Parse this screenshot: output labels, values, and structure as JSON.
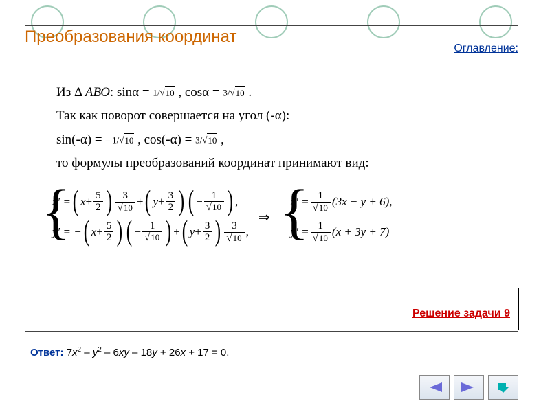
{
  "decor": {
    "dot_count": 5,
    "dot_border": "#a0ccb8"
  },
  "title": "Преобразования координат",
  "title_color": "#cc6600",
  "toc_link": "Оглавление:",
  "lines": {
    "l1_prefix": "Из Δ ",
    "l1_tri": "АВО",
    "l1_mid1": ": sinα = ",
    "l1_frac1_num": "1",
    "l1_frac1_rad": "10",
    "l1_mid2": ",  cosα = ",
    "l1_frac2_num": "3",
    "l1_frac2_rad": "10",
    "l1_end": ".",
    "l2": "Так как поворот совершается на угол (-α):",
    "l3_a": "sin(-α) = ",
    "l3_frac1_num": "– 1",
    "l3_frac1_rad": "10",
    "l3_b": ",  cos(-α) = ",
    "l3_frac2_num": "3",
    "l3_frac2_rad": "10",
    "l3_c": ",",
    "l4": "то формулы преобразований координат  принимают вид:"
  },
  "formula": {
    "left": {
      "row1": {
        "lhs": "x′ =",
        "p1_var": "x",
        "p1_sign": "+",
        "p1_num": "5",
        "p1_den": "2",
        "cf1_num": "3",
        "cf1_rad": "10",
        "plus": "+",
        "p2_var": "y",
        "p2_sign": "+",
        "p2_num": "3",
        "p2_den": "2",
        "cf2_sign": "−",
        "cf2_num": "1",
        "cf2_rad": "10",
        "end": ","
      },
      "row2": {
        "lhs": "y′ = −",
        "p1_var": "x",
        "p1_sign": "+",
        "p1_num": "5",
        "p1_den": "2",
        "cf1_sign": "−",
        "cf1_num": "1",
        "cf1_rad": "10",
        "plus": "+",
        "p2_var": "y",
        "p2_sign": "+",
        "p2_num": "3",
        "p2_den": "2",
        "cf2_num": "3",
        "cf2_rad": "10",
        "end": ","
      }
    },
    "arrow": "⇒",
    "right": {
      "row1": {
        "lhs": "x′ =",
        "cf_num": "1",
        "cf_rad": "10",
        "paren": "(3x − y + 6)",
        "end": ","
      },
      "row2": {
        "lhs": "y′ =",
        "cf_num": "1",
        "cf_rad": "10",
        "paren": "(x + 3y + 7)",
        "end": ""
      }
    }
  },
  "solution_link": "Решение задачи 9",
  "answer_label": "Ответ:",
  "answer_body_html": " 7<i>x</i><sup>2</sup> – <i>y</i><sup>2</sup> – 6<i>xy</i> – 18<i>y</i> + 26<i>x</i> + 17 = 0.",
  "nav": {
    "prev_color": "#6a6ad8",
    "next_color": "#6a6ad8",
    "home_color": "#00b0b0"
  }
}
